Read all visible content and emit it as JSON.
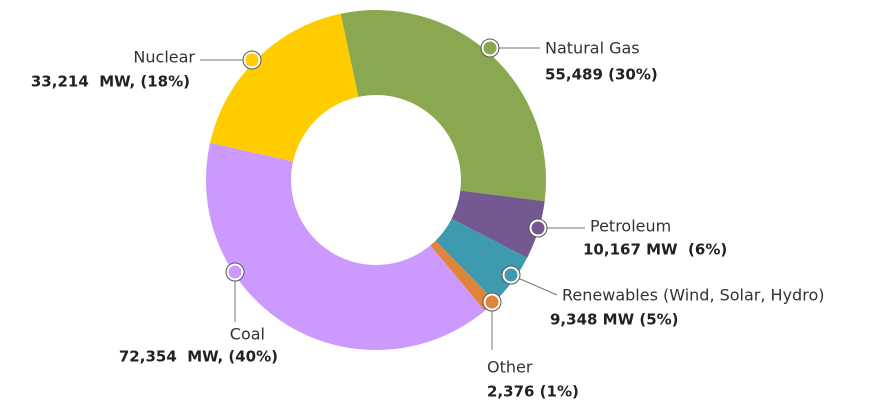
{
  "chart_data": {
    "type": "pie",
    "donut": true,
    "categories": [
      "Natural Gas",
      "Petroleum",
      "Renewables (Wind, Solar, Hydro)",
      "Other",
      "Coal",
      "Nuclear"
    ],
    "values": [
      55489,
      10167,
      9348,
      2376,
      72354,
      33214
    ],
    "value_labels": [
      "55,489 (30%)",
      "10,167 MW  (6%)",
      "9,348 MW (5%)",
      "2,376 (1%)",
      "72,354  MW, (40%)",
      "33,214  MW, (18%)"
    ],
    "colors": [
      "#8aa84f",
      "#735891",
      "#3e9aaf",
      "#e0843a",
      "#cc99ff",
      "#ffcc00"
    ]
  }
}
